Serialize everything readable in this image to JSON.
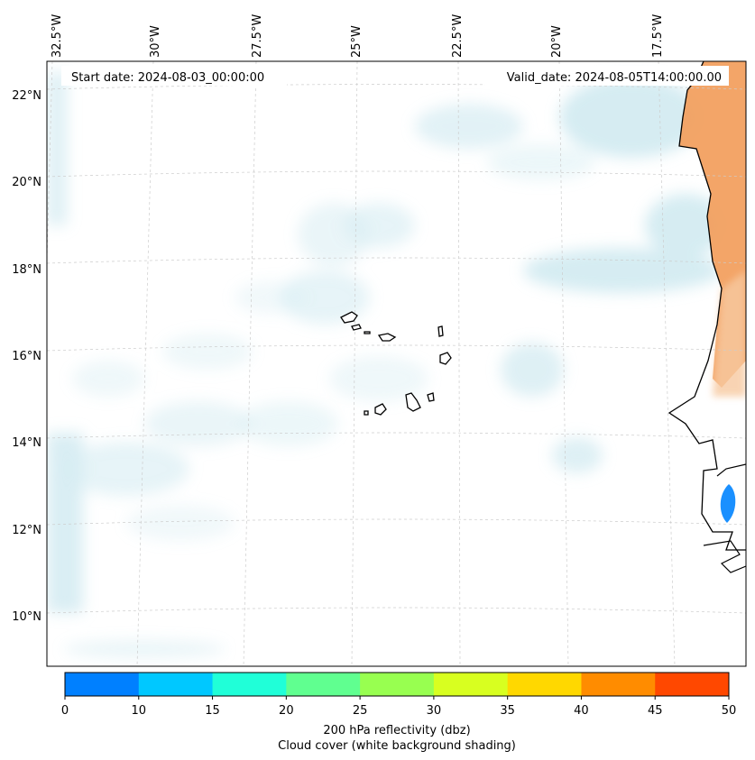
{
  "header": {
    "start_date": "Start date: 2024-08-03_00:00:00",
    "valid_date": "Valid_date: 2024-08-05T14:00:00.00"
  },
  "map": {
    "longitude_labels": [
      "32.5°W",
      "30°W",
      "27.5°W",
      "25°W",
      "22.5°W",
      "20°W",
      "17.5°W"
    ],
    "latitude_labels": [
      "22°N",
      "20°N",
      "18°N",
      "16°N",
      "14°N",
      "12°N",
      "10°N"
    ],
    "features": [
      "cloud-cover-shading",
      "reflectivity-shading",
      "coastlines",
      "cape-verde-islands",
      "gridlines"
    ]
  },
  "colorbar": {
    "ticks": [
      "0",
      "10",
      "15",
      "20",
      "25",
      "30",
      "35",
      "40",
      "45",
      "50"
    ],
    "colors": [
      "#0080ff",
      "#00c8ff",
      "#20ffd8",
      "#60ff90",
      "#98ff50",
      "#d8ff20",
      "#ffd800",
      "#ff8c00",
      "#ff4800"
    ],
    "label_line1": "200 hPa reflectivity (dbz)",
    "label_line2": "Cloud cover (white background shading)"
  },
  "colors": {
    "cloud_shading": "#c8e6ee",
    "land_warm": "#f2a060",
    "coastline": "#000000",
    "gridline": "#cccccc"
  }
}
